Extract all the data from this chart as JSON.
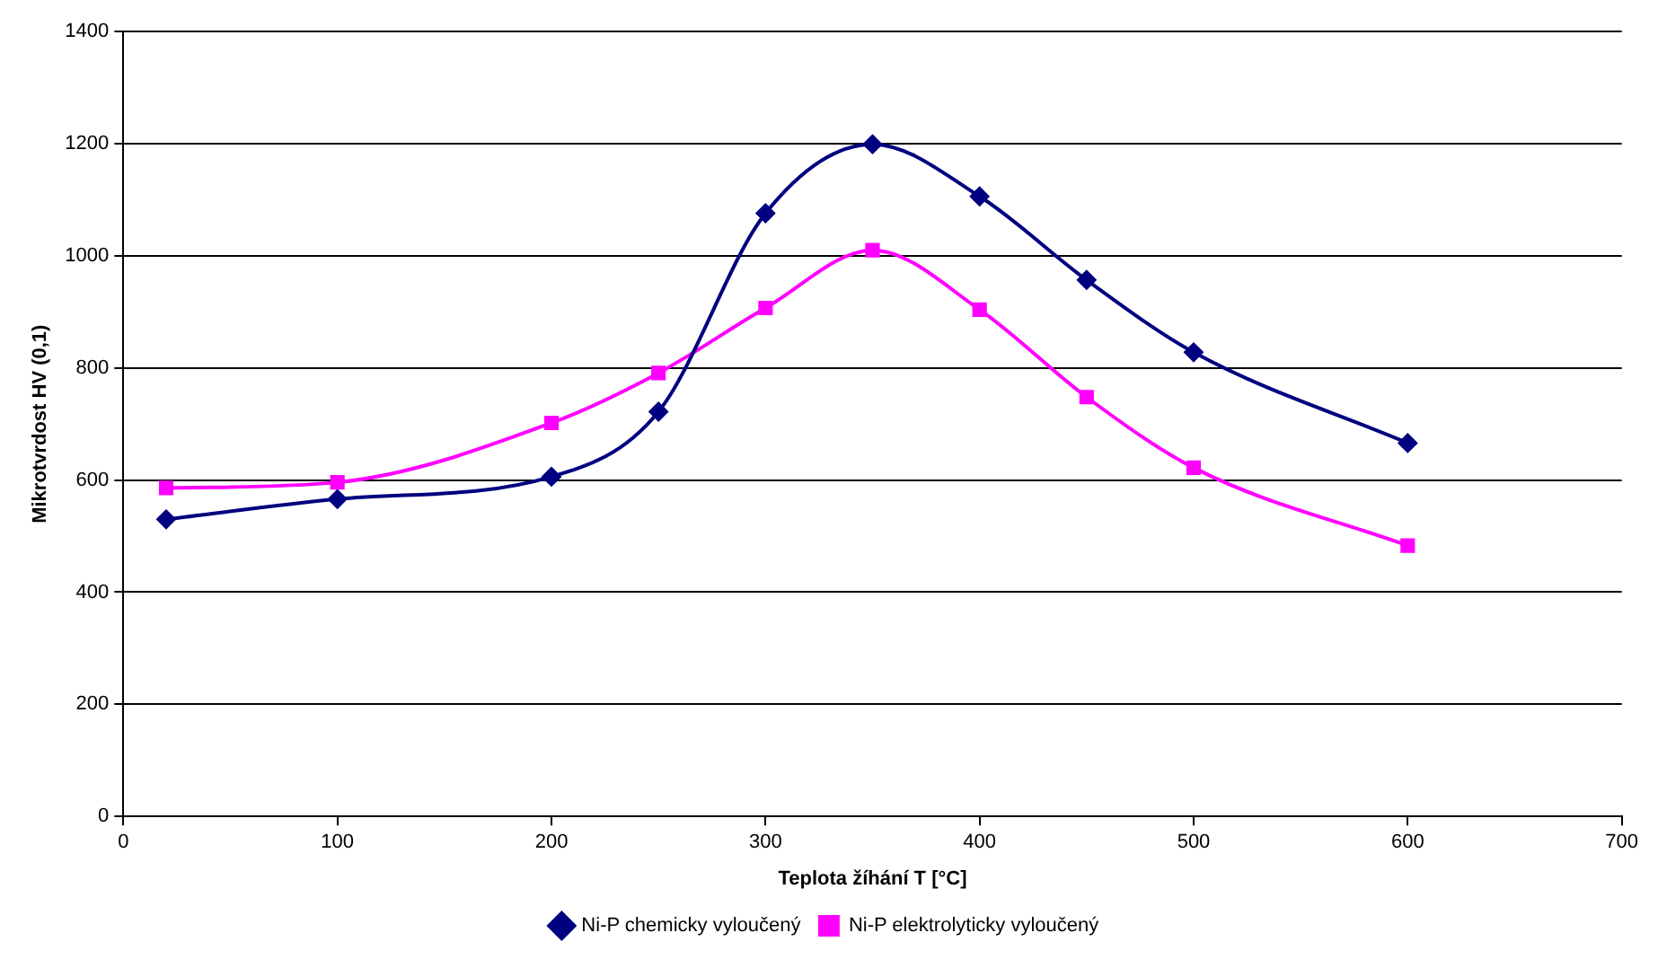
{
  "chart_data": {
    "type": "line",
    "xlabel": "Teplota žíhání T [°C]",
    "ylabel": "Mikrotvrdost HV (0,1)",
    "x": [
      20,
      100,
      200,
      250,
      300,
      350,
      400,
      450,
      500,
      600
    ],
    "series": [
      {
        "name": "Ni-P chemicky vyloučený",
        "color": "#000080",
        "marker": "diamond",
        "values": [
          530,
          566,
          606,
          722,
          1076,
          1199,
          1106,
          957,
          828,
          666
        ]
      },
      {
        "name": "Ni-P elektrolyticky vyloučený",
        "color": "#ff00ff",
        "marker": "square",
        "values": [
          586,
          596,
          702,
          791,
          907,
          1010,
          904,
          748,
          622,
          483
        ]
      }
    ],
    "xlim": [
      0,
      700
    ],
    "xticks": [
      0,
      100,
      200,
      300,
      400,
      500,
      600,
      700
    ],
    "ylim": [
      0,
      1400
    ],
    "yticks": [
      0,
      200,
      400,
      600,
      800,
      1000,
      1200,
      1400
    ],
    "grid": "y",
    "legend": "bottom"
  }
}
